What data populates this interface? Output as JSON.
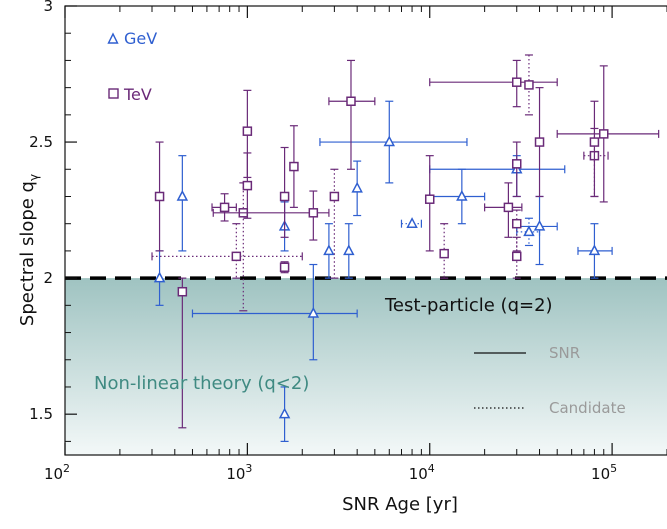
{
  "chart_data": {
    "type": "scatter",
    "xlabel": "SNR Age [yr]",
    "ylabel": "Spectral slope q",
    "ylabel_sub": "γ",
    "x_scale": "log",
    "xlim": [
      100,
      200000
    ],
    "ylim": [
      1.35,
      3.0
    ],
    "x_ticks": [
      {
        "value": 100,
        "base": "10",
        "exp": "2"
      },
      {
        "value": 1000,
        "base": "10",
        "exp": "3"
      },
      {
        "value": 10000,
        "base": "10",
        "exp": "4"
      },
      {
        "value": 100000,
        "base": "10",
        "exp": "5"
      }
    ],
    "y_ticks": [
      {
        "value": 1.5,
        "label": "1.5"
      },
      {
        "value": 2.0,
        "label": "2"
      },
      {
        "value": 2.5,
        "label": "2.5"
      },
      {
        "value": 3.0,
        "label": "3"
      }
    ],
    "grid": false,
    "legend_position": "top-left",
    "reference_line": {
      "y": 2.0,
      "label": "Test-particle (q=2)"
    },
    "region_label": "Non-linear theory (q<2)",
    "line_style_legend": [
      {
        "style": "solid",
        "label": "SNR"
      },
      {
        "style": "dotted",
        "label": "Candidate"
      }
    ],
    "series": [
      {
        "name": "GeV",
        "marker": "triangle",
        "color": "#2f5fd0",
        "points": [
          {
            "x": 330,
            "xlo": 330,
            "xhi": 330,
            "y": 2.0,
            "ylo": 1.9,
            "yhi": 2.1,
            "style": "solid"
          },
          {
            "x": 440,
            "xlo": 440,
            "xhi": 440,
            "y": 2.3,
            "ylo": 2.1,
            "yhi": 2.45,
            "style": "solid"
          },
          {
            "x": 1600,
            "xlo": 1600,
            "xhi": 1600,
            "y": 2.19,
            "ylo": 2.1,
            "yhi": 2.28,
            "style": "solid"
          },
          {
            "x": 1600,
            "xlo": 1600,
            "xhi": 1600,
            "y": 1.5,
            "ylo": 1.4,
            "yhi": 1.6,
            "style": "solid"
          },
          {
            "x": 2300,
            "xlo": 500,
            "xhi": 4000,
            "y": 1.87,
            "ylo": 1.7,
            "yhi": 2.05,
            "style": "solid"
          },
          {
            "x": 2800,
            "xlo": 2800,
            "xhi": 2800,
            "y": 2.1,
            "ylo": 2.0,
            "yhi": 2.2,
            "style": "solid"
          },
          {
            "x": 3600,
            "xlo": 3600,
            "xhi": 3600,
            "y": 2.1,
            "ylo": 2.0,
            "yhi": 2.2,
            "style": "solid"
          },
          {
            "x": 4000,
            "xlo": 4000,
            "xhi": 4000,
            "y": 2.33,
            "ylo": 2.23,
            "yhi": 2.43,
            "style": "solid"
          },
          {
            "x": 6000,
            "xlo": 2500,
            "xhi": 16000,
            "y": 2.5,
            "ylo": 2.35,
            "yhi": 2.65,
            "style": "solid"
          },
          {
            "x": 8000,
            "xlo": 7000,
            "xhi": 9000,
            "y": 2.2,
            "ylo": 2.2,
            "yhi": 2.2,
            "style": "dotted"
          },
          {
            "x": 15000,
            "xlo": 10000,
            "xhi": 20000,
            "y": 2.3,
            "ylo": 2.2,
            "yhi": 2.4,
            "style": "solid"
          },
          {
            "x": 30000,
            "xlo": 10000,
            "xhi": 55000,
            "y": 2.4,
            "ylo": 2.3,
            "yhi": 2.45,
            "style": "solid"
          },
          {
            "x": 35000,
            "xlo": 30000,
            "xhi": 40000,
            "y": 2.17,
            "ylo": 2.12,
            "yhi": 2.22,
            "style": "dotted"
          },
          {
            "x": 40000,
            "xlo": 30000,
            "xhi": 50000,
            "y": 2.19,
            "ylo": 2.05,
            "yhi": 2.3,
            "style": "solid"
          },
          {
            "x": 80000,
            "xlo": 65000,
            "xhi": 100000,
            "y": 2.1,
            "ylo": 2.0,
            "yhi": 2.2,
            "style": "solid"
          }
        ]
      },
      {
        "name": "TeV",
        "marker": "square",
        "color": "#6a2a78",
        "points": [
          {
            "x": 330,
            "xlo": 330,
            "xhi": 330,
            "y": 2.3,
            "ylo": 2.1,
            "yhi": 2.5,
            "style": "solid"
          },
          {
            "x": 440,
            "xlo": 440,
            "xhi": 440,
            "y": 1.95,
            "ylo": 1.45,
            "yhi": 2.0,
            "style": "solid"
          },
          {
            "x": 750,
            "xlo": 640,
            "xhi": 870,
            "y": 2.26,
            "ylo": 2.21,
            "yhi": 2.31,
            "style": "solid"
          },
          {
            "x": 870,
            "xlo": 300,
            "xhi": 2000,
            "y": 2.08,
            "ylo": 2.0,
            "yhi": 2.2,
            "style": "dotted"
          },
          {
            "x": 950,
            "xlo": 950,
            "xhi": 950,
            "y": 2.24,
            "ylo": 1.88,
            "yhi": 2.35,
            "style": "dotted"
          },
          {
            "x": 1000,
            "xlo": 1000,
            "xhi": 1000,
            "y": 2.54,
            "ylo": 2.37,
            "yhi": 2.69,
            "style": "solid"
          },
          {
            "x": 1000,
            "xlo": 1000,
            "xhi": 1000,
            "y": 2.34,
            "ylo": 2.22,
            "yhi": 2.46,
            "style": "solid"
          },
          {
            "x": 1600,
            "xlo": 1600,
            "xhi": 1600,
            "y": 2.3,
            "ylo": 2.15,
            "yhi": 2.48,
            "style": "solid"
          },
          {
            "x": 1600,
            "xlo": 1600,
            "xhi": 1600,
            "y": 2.04,
            "ylo": 2.02,
            "yhi": 2.06,
            "style": "solid"
          },
          {
            "x": 1800,
            "xlo": 1800,
            "xhi": 1800,
            "y": 2.41,
            "ylo": 2.26,
            "yhi": 2.56,
            "style": "solid"
          },
          {
            "x": 2300,
            "xlo": 650,
            "xhi": 2800,
            "y": 2.24,
            "ylo": 2.14,
            "yhi": 2.32,
            "style": "solid"
          },
          {
            "x": 3000,
            "xlo": 3000,
            "xhi": 3000,
            "y": 2.3,
            "ylo": 2.0,
            "yhi": 2.4,
            "style": "dotted"
          },
          {
            "x": 3700,
            "xlo": 2800,
            "xhi": 5000,
            "y": 2.65,
            "ylo": 2.4,
            "yhi": 2.8,
            "style": "solid"
          },
          {
            "x": 10000,
            "xlo": 10000,
            "xhi": 10000,
            "y": 2.29,
            "ylo": 2.1,
            "yhi": 2.45,
            "style": "solid"
          },
          {
            "x": 12000,
            "xlo": 12000,
            "xhi": 12000,
            "y": 2.09,
            "ylo": 2.0,
            "yhi": 2.2,
            "style": "dotted"
          },
          {
            "x": 27000,
            "xlo": 20000,
            "xhi": 32000,
            "y": 2.26,
            "ylo": 2.15,
            "yhi": 2.35,
            "style": "solid"
          },
          {
            "x": 30000,
            "xlo": 30000,
            "xhi": 30000,
            "y": 2.42,
            "ylo": 2.3,
            "yhi": 2.5,
            "style": "solid"
          },
          {
            "x": 30000,
            "xlo": 30000,
            "xhi": 30000,
            "y": 2.2,
            "ylo": 2.1,
            "yhi": 2.25,
            "style": "dotted"
          },
          {
            "x": 30000,
            "xlo": 30000,
            "xhi": 30000,
            "y": 2.08,
            "ylo": 2.0,
            "yhi": 2.15,
            "style": "dotted"
          },
          {
            "x": 30000,
            "xlo": 10000,
            "xhi": 50000,
            "y": 2.72,
            "ylo": 2.63,
            "yhi": 2.8,
            "style": "solid"
          },
          {
            "x": 35000,
            "xlo": 35000,
            "xhi": 35000,
            "y": 2.71,
            "ylo": 2.6,
            "yhi": 2.82,
            "style": "dotted"
          },
          {
            "x": 40000,
            "xlo": 40000,
            "xhi": 40000,
            "y": 2.5,
            "ylo": 2.3,
            "yhi": 2.7,
            "style": "solid"
          },
          {
            "x": 80000,
            "xlo": 70000,
            "xhi": 95000,
            "y": 2.45,
            "ylo": 2.3,
            "yhi": 2.55,
            "style": "dotted"
          },
          {
            "x": 80000,
            "xlo": 80000,
            "xhi": 80000,
            "y": 2.5,
            "ylo": 2.3,
            "yhi": 2.65,
            "style": "solid"
          },
          {
            "x": 90000,
            "xlo": 50000,
            "xhi": 180000,
            "y": 2.53,
            "ylo": 2.28,
            "yhi": 2.78,
            "style": "solid"
          }
        ]
      }
    ]
  }
}
